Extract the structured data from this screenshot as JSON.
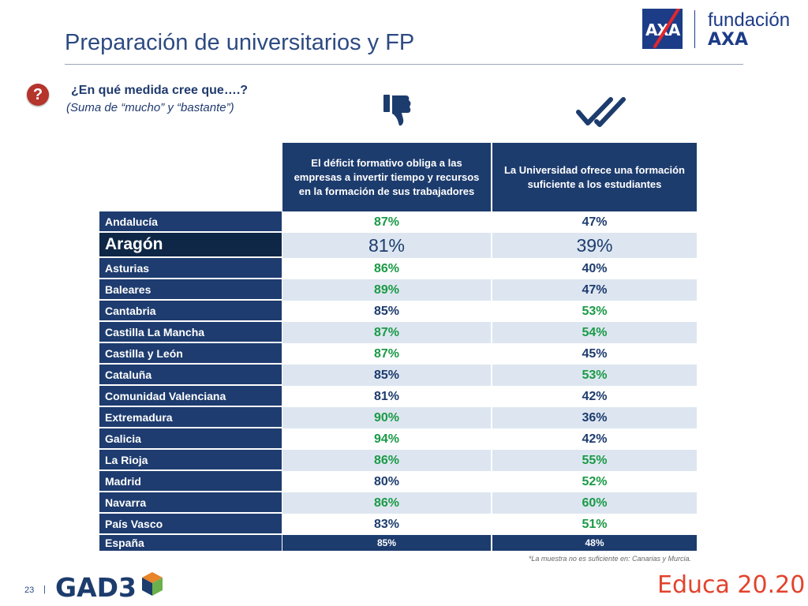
{
  "header": {
    "title": "Preparación de universitarios y FP",
    "brand_top": "fundación",
    "brand_bottom": "AXA",
    "axa_box": "AXA"
  },
  "question": {
    "icon": "question-icon",
    "text": "¿En qué medida cree que….?",
    "subtext": "(Suma de “mucho” y “bastante”)"
  },
  "icons": {
    "col1": "thumbs-down-icon",
    "col2": "double-check-icon"
  },
  "colors": {
    "green": "#1a9a46",
    "navy": "#1d3c6e",
    "row_alt": "#dde6f0",
    "accent_red": "#e3262d"
  },
  "table": {
    "columns": [
      "El déficit formativo obliga a las empresas a invertir tiempo y recursos en la formación de sus trabajadores",
      "La Universidad ofrece una formación suficiente a los estudiantes"
    ],
    "rows": [
      {
        "region": "Andalucía",
        "c1": "87%",
        "c2": "47%"
      },
      {
        "region": "Aragón",
        "c1": "81%",
        "c2": "39%"
      },
      {
        "region": "Asturias",
        "c1": "86%",
        "c2": "40%"
      },
      {
        "region": "Baleares",
        "c1": "89%",
        "c2": "47%"
      },
      {
        "region": "Cantabria",
        "c1": "85%",
        "c2": "53%"
      },
      {
        "region": "Castilla La Mancha",
        "c1": "87%",
        "c2": "54%"
      },
      {
        "region": "Castilla y León",
        "c1": "87%",
        "c2": "45%"
      },
      {
        "region": "Cataluña",
        "c1": "85%",
        "c2": "53%"
      },
      {
        "region": "Comunidad Valenciana",
        "c1": "81%",
        "c2": "42%"
      },
      {
        "region": "Extremadura",
        "c1": "90%",
        "c2": "36%"
      },
      {
        "region": "Galicia",
        "c1": "94%",
        "c2": "42%"
      },
      {
        "region": "La Rioja",
        "c1": "86%",
        "c2": "55%"
      },
      {
        "region": "Madrid",
        "c1": "80%",
        "c2": "52%"
      },
      {
        "region": "Navarra",
        "c1": "86%",
        "c2": "60%"
      },
      {
        "region": "País Vasco",
        "c1": "83%",
        "c2": "51%"
      }
    ],
    "total": {
      "region": "España",
      "c1": "85%",
      "c2": "48%"
    }
  },
  "footnote": "*La  muestra  no es suficiente en: Canarias y Murcia.",
  "footer": {
    "page_number": "23",
    "separator": "|",
    "logo_left": "GAD3",
    "logo_right": "Educa 20.20"
  }
}
